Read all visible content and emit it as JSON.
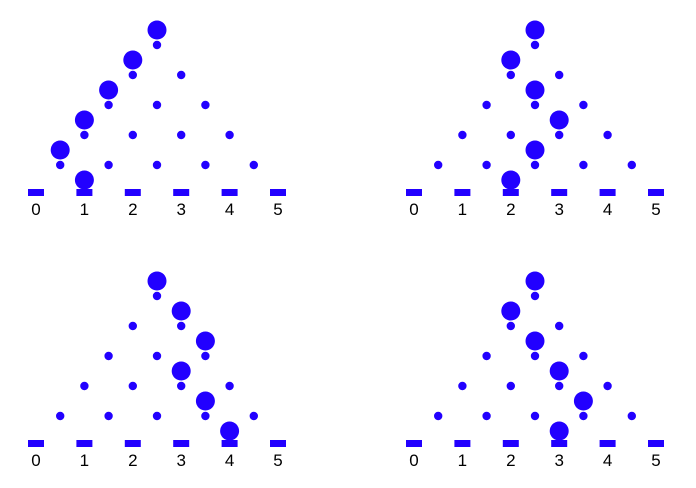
{
  "accent_color": "#2200ff",
  "bin_labels": [
    "0",
    "1",
    "2",
    "3",
    "4",
    "5"
  ],
  "boards": [
    {
      "path": [
        "L",
        "L",
        "L",
        "L",
        "R"
      ],
      "final_bin": 1
    },
    {
      "path": [
        "L",
        "R",
        "R",
        "L",
        "L"
      ],
      "final_bin": 2
    },
    {
      "path": [
        "R",
        "R",
        "L",
        "R",
        "R"
      ],
      "final_bin": 4
    },
    {
      "path": [
        "L",
        "R",
        "R",
        "R",
        "L"
      ],
      "final_bin": 3
    }
  ]
}
